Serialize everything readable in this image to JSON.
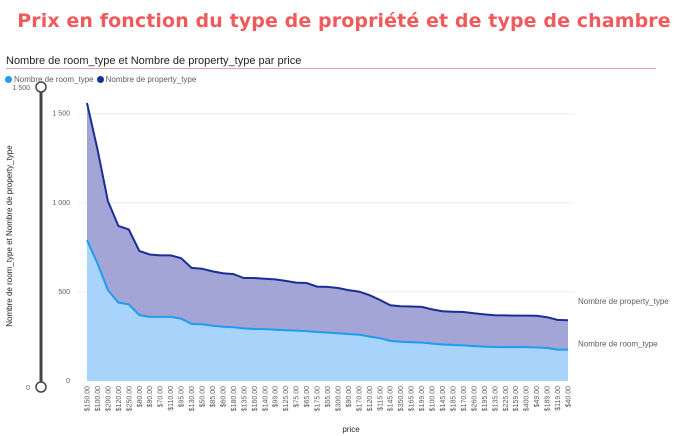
{
  "page": {
    "title": "Prix en fonction du type de propriété et de type de chambre",
    "visual_title": "Nombre de room_type et Nombre de property_type par price"
  },
  "colors": {
    "title": "#f05a5d",
    "room_line": "#1f9bf0",
    "room_fill": "#a8d4fb",
    "property_line": "#1a2e96",
    "property_fill": "#a3a5d6",
    "slider": "#444444"
  },
  "chart_data": {
    "type": "area",
    "title": "Nombre de room_type et Nombre de property_type par price",
    "xlabel": "price",
    "ylabel": "Nombre de room_type et Nombre de property_type",
    "ylim": [
      0,
      1650
    ],
    "yticks": [
      0,
      500,
      1000,
      1500
    ],
    "ytick_labels": [
      "0",
      "500",
      "1 000",
      "1 500"
    ],
    "grid": true,
    "legend_position": "top-left",
    "slider_labels": [
      "1 500",
      "0"
    ],
    "categories": [
      "$150.00",
      "$100.00",
      "$200.00",
      "$120.00",
      "$250.00",
      "$80.00",
      "$90.00",
      "$70.00",
      "$110.00",
      "$95.00",
      "$130.00",
      "$50.00",
      "$85.00",
      "$60.00",
      "$180.00",
      "$135.00",
      "$160.00",
      "$140.00",
      "$99.00",
      "$125.00",
      "$75.00",
      "$65.00",
      "$175.00",
      "$55.00",
      "$300.00",
      "$90.00",
      "$170.00",
      "$120.00",
      "$115.00",
      "$145.00",
      "$350.00",
      "$165.00",
      "$199.00",
      "$100.00",
      "$145.00",
      "$185.00",
      "$170.00",
      "$260.00",
      "$195.00",
      "$135.00",
      "$225.00",
      "$159.00",
      "$400.00",
      "$49.00",
      "$189.00",
      "$119.00",
      "$40.00"
    ],
    "series": [
      {
        "name": "Nombre de property_type",
        "values": [
          1560,
          1300,
          1010,
          870,
          850,
          730,
          710,
          705,
          705,
          690,
          635,
          630,
          615,
          605,
          600,
          578,
          578,
          574,
          570,
          562,
          552,
          550,
          530,
          528,
          522,
          510,
          502,
          482,
          455,
          425,
          420,
          418,
          416,
          402,
          392,
          389,
          387,
          380,
          374,
          369,
          368,
          367,
          367,
          366,
          358,
          343,
          341
        ]
      },
      {
        "name": "Nombre de room_type",
        "values": [
          790,
          660,
          510,
          440,
          430,
          370,
          360,
          360,
          360,
          350,
          320,
          318,
          310,
          305,
          302,
          295,
          292,
          291,
          288,
          285,
          283,
          280,
          275,
          272,
          268,
          264,
          260,
          250,
          240,
          225,
          220,
          218,
          216,
          210,
          205,
          202,
          200,
          196,
          193,
          191,
          190,
          190,
          190,
          188,
          185,
          176,
          176
        ]
      }
    ]
  }
}
